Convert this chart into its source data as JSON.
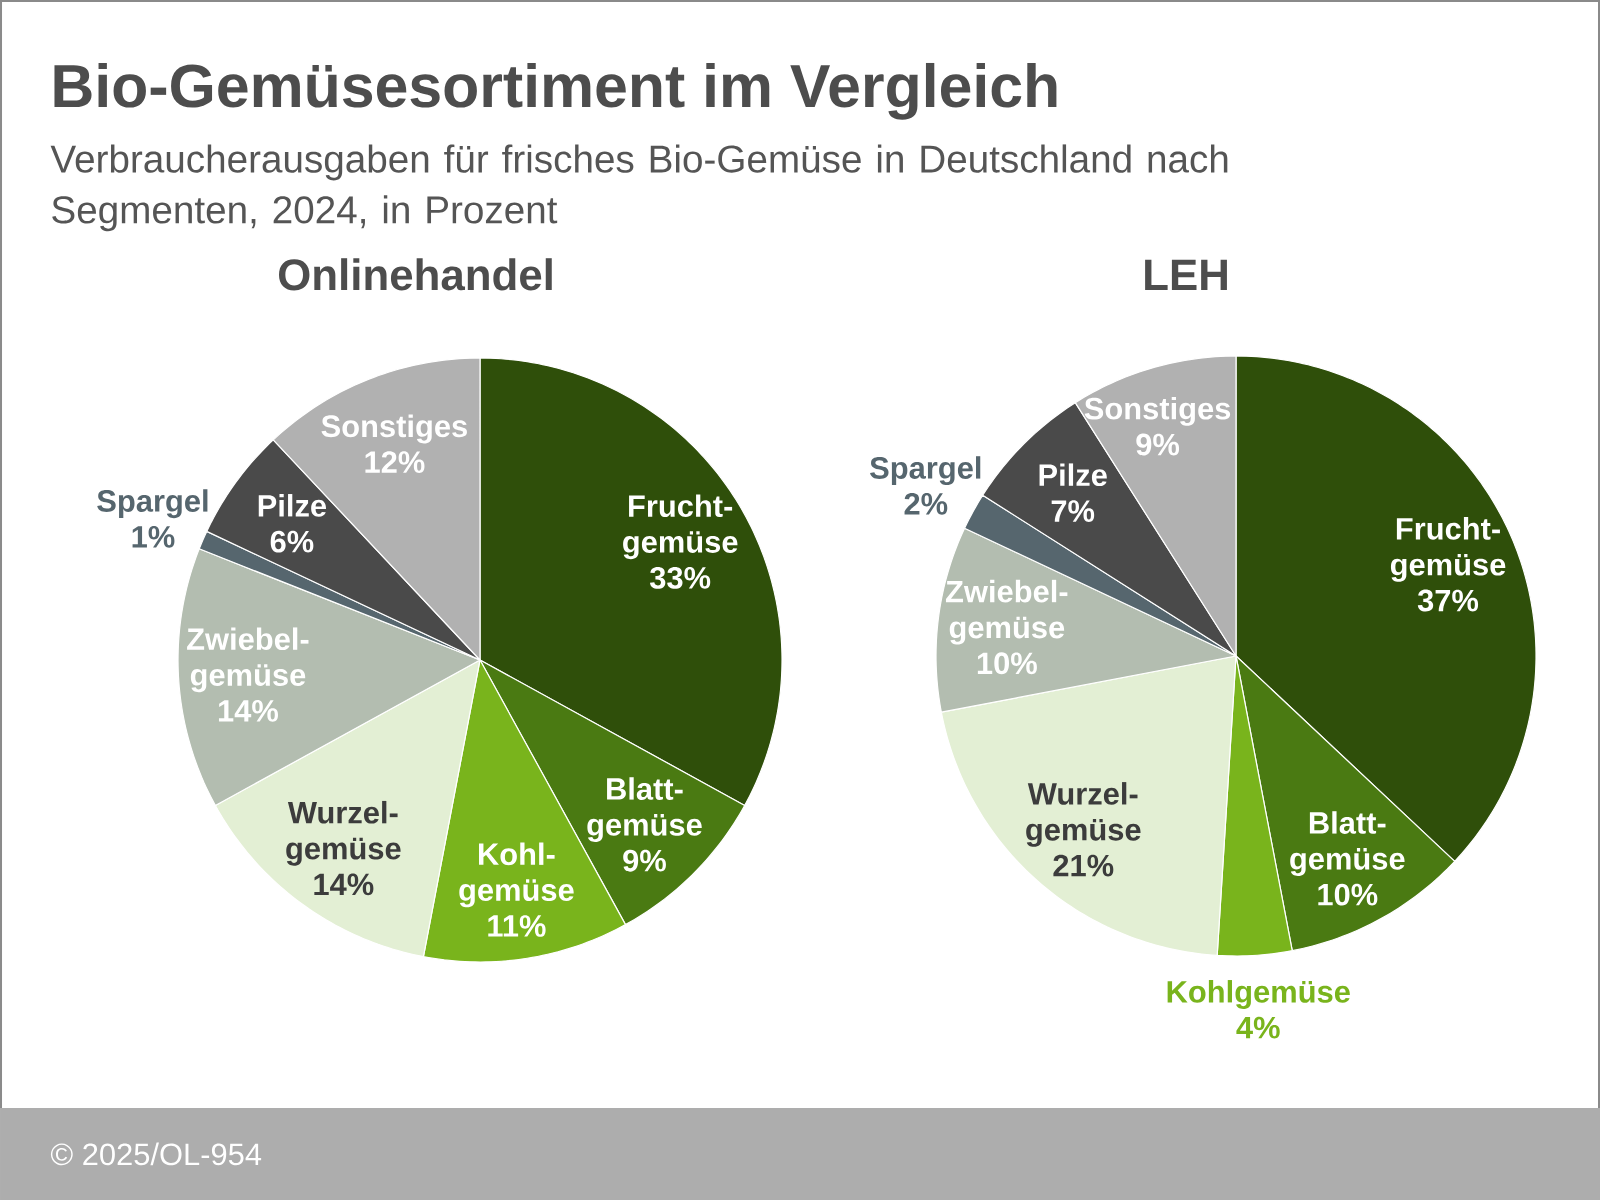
{
  "chart_data": [
    {
      "type": "other",
      "title": "Bio-Gemüsesortiment im Vergleich",
      "subtitle": "Verbraucherausgaben für frisches Bio-Gemüse in Deutschland nach Segmenten, 2024, in Prozent",
      "annotations": [
        "© 2025/OL-954"
      ]
    },
    {
      "type": "pie",
      "title": "Onlinehandel",
      "categories": [
        "Frucht- gemüse",
        "Blatt- gemüse",
        "Kohl- gemüse",
        "Wurzel- gemüse",
        "Zwiebel- gemüse",
        "Spargel",
        "Pilze",
        "Sonstiges"
      ],
      "values": [
        33,
        9,
        11,
        14,
        14,
        1,
        6,
        12
      ],
      "value_labels": [
        "33%",
        "9%",
        "11%",
        "14%",
        "14%",
        "1%",
        "6%",
        "12%"
      ],
      "colors": [
        "#2f4f0a",
        "#4a7a12",
        "#79b41c",
        "#e3efd4",
        "#b3bdb0",
        "#56666e",
        "#4a4a4a",
        "#b1b1b1"
      ]
    },
    {
      "type": "pie",
      "title": "LEH",
      "categories": [
        "Frucht- gemüse",
        "Blatt- gemüse",
        "Kohlgemüse",
        "Wurzel- gemüse",
        "Zwiebel- gemüse",
        "Spargel",
        "Pilze",
        "Sonstiges"
      ],
      "values": [
        37,
        10,
        4,
        21,
        10,
        2,
        7,
        9
      ],
      "value_labels": [
        "37%",
        "10%",
        "4%",
        "21%",
        "10%",
        "2%",
        "7%",
        "9%"
      ],
      "colors": [
        "#2f4f0a",
        "#4a7a12",
        "#79b41c",
        "#e3efd4",
        "#b3bdb0",
        "#56666e",
        "#4a4a4a",
        "#b1b1b1"
      ]
    }
  ]
}
